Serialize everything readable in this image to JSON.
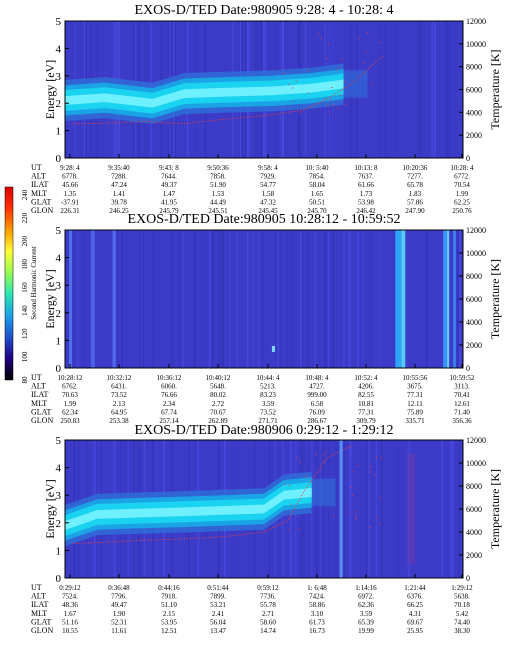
{
  "colors": {
    "background_blue": "#3b3bc8",
    "band_cyan": "#1ad3f0",
    "band_light": "#6ff0ff",
    "band_mid": "#1aa4e6",
    "band_edge": "#2f6fd8",
    "temperature_trace": "#e83d3d"
  },
  "colorbar": {
    "label": "Second Harmonic Current",
    "ticks": [
      "240",
      "220",
      "200",
      "180",
      "160",
      "140",
      "120",
      "100",
      "80"
    ],
    "stops": [
      "#d80000",
      "#ff3300",
      "#ff9a00",
      "#ffff33",
      "#96ff50",
      "#29e6b4",
      "#1aa0e6",
      "#2050cc",
      "#200080",
      "#000000"
    ]
  },
  "chart_data": [
    {
      "type": "heatmap",
      "title": "EXOS-D/TED   Date:980905   9:28: 4 - 10:28: 4",
      "ylabel": "Energy [eV]",
      "y2label": "Temperature [K]",
      "ylim": [
        0,
        5
      ],
      "y2lim": [
        0,
        12000
      ],
      "yticks": [
        "0",
        "1",
        "2",
        "3",
        "4",
        "5"
      ],
      "y2ticks": [
        "0",
        "2000",
        "4000",
        "6000",
        "8000",
        "10000",
        "12000"
      ],
      "row_labels": [
        "UT",
        "ALT",
        "ILAT",
        "MLT",
        "GLAT",
        "GLON"
      ],
      "columns": [
        [
          "9:28: 4",
          "9:35:40",
          "9:43: 8",
          "9:50:36",
          "9:58: 4",
          "10: 5:40",
          "10:13: 8",
          "10:20:36",
          "10:28: 4"
        ],
        [
          "6778.",
          "7288.",
          "7644.",
          "7858.",
          "7929.",
          "7854.",
          "7637.",
          "7277.",
          "6772."
        ],
        [
          "45.66",
          "47.24",
          "49.37",
          "51.90",
          "54.77",
          "58.04",
          "61.66",
          "65.78",
          "70.54"
        ],
        [
          "1.35",
          "1.41",
          "1.47",
          "1.53",
          "1.58",
          "1.65",
          "1.73",
          "1.83",
          "1.99"
        ],
        [
          "-37.91",
          "39.78",
          "41.95",
          "44.49",
          "47.32",
          "50.51",
          "53.98",
          "57.86",
          "62.25"
        ],
        [
          "226.31",
          "246.25",
          "245.79",
          "245.51",
          "245.45",
          "245.70",
          "246.42",
          "247.90",
          "250.76"
        ]
      ],
      "band_center_ev": [
        2.1,
        2.2,
        2.0,
        2.35,
        2.4,
        2.45,
        2.55,
        2.7
      ],
      "band_x_fraction": [
        0.0,
        0.1,
        0.22,
        0.3,
        0.4,
        0.52,
        0.62,
        0.7
      ],
      "temperature_k": [
        3000,
        3050,
        3200,
        3000,
        3400,
        3700,
        4200,
        5200,
        6500,
        9000
      ],
      "temperature_x_fraction": [
        0.02,
        0.1,
        0.2,
        0.3,
        0.4,
        0.5,
        0.6,
        0.66,
        0.72,
        0.8
      ]
    },
    {
      "type": "heatmap",
      "title": "EXOS-D/TED   Date:980905  10:28:12 - 10:59:52",
      "ylabel": "Energy [eV]",
      "y2label": "Temperature [K]",
      "ylim": [
        0,
        5
      ],
      "y2lim": [
        0,
        12000
      ],
      "yticks": [
        "0",
        "1",
        "2",
        "3",
        "4",
        "5"
      ],
      "y2ticks": [
        "0",
        "2000",
        "4000",
        "6000",
        "8000",
        "10000",
        "12000"
      ],
      "row_labels": [
        "UT",
        "ALT",
        "ILAT",
        "MLT",
        "GLAT",
        "GLON"
      ],
      "columns": [
        [
          "10:28:12",
          "10:32:12",
          "10:36:12",
          "10:40:12",
          "10:44: 4",
          "10:48: 4",
          "10:52: 4",
          "10:55:56",
          "10:59:52"
        ],
        [
          "6762.",
          "6431.",
          "6060.",
          "5648.",
          "5213.",
          "4727.",
          "4206.",
          "3675.",
          "3113."
        ],
        [
          "70.63",
          "73.52",
          "76.66",
          "80.02",
          "83.23",
          "999.00",
          "82.55",
          "77.31",
          "70.41"
        ],
        [
          "1.99",
          "2.13",
          "2.34",
          "2.72",
          "3.59",
          "6.58",
          "10.81",
          "12.11",
          "12.61"
        ],
        [
          "62.34",
          "64.95",
          "67.74",
          "70.67",
          "73.52",
          "76.09",
          "77.31",
          "75.89",
          "71.40"
        ],
        [
          "250.83",
          "253.38",
          "257.14",
          "262.89",
          "271.71",
          "286.67",
          "309.79",
          "335.71",
          "356.36"
        ]
      ]
    },
    {
      "type": "heatmap",
      "title": "EXOS-D/TED   Date:980906   0:29:12 - 1:29:12",
      "ylabel": "Energy [eV]",
      "y2label": "Temperature [K]",
      "ylim": [
        0,
        5
      ],
      "y2lim": [
        0,
        12000
      ],
      "yticks": [
        "0",
        "1",
        "2",
        "3",
        "4",
        "5"
      ],
      "y2ticks": [
        "0",
        "2000",
        "4000",
        "6000",
        "8000",
        "10000",
        "12000"
      ],
      "row_labels": [
        "UT",
        "ALT",
        "ILAT",
        "MLT",
        "GLAT",
        "GLON"
      ],
      "columns": [
        [
          "0:29:12",
          "0:36:48",
          "0:44:16",
          "0:51:44",
          "0:59:12",
          "1: 6:48",
          "1:14:16",
          "1:21:44",
          "1:29:12"
        ],
        [
          "7524.",
          "7796.",
          "7918.",
          "7899.",
          "7736.",
          "7424.",
          "6972.",
          "6376.",
          "5638."
        ],
        [
          "48.36",
          "49.47",
          "51.10",
          "53.21",
          "55.78",
          "58.86",
          "62.36",
          "66.25",
          "70.18"
        ],
        [
          "1.67",
          "1.90",
          "2.15",
          "2.41",
          "2.71",
          "3.10",
          "3.59",
          "4.31",
          "5.42"
        ],
        [
          "51.16",
          "52.31",
          "53.95",
          "56.04",
          "58.60",
          "61.73",
          "65.39",
          "69.67",
          "74.40"
        ],
        [
          "10.55",
          "11.61",
          "12.51",
          "13.47",
          "14.74",
          "16.73",
          "19.99",
          "25.95",
          "38.30"
        ]
      ],
      "band_center_ev": [
        1.9,
        2.3,
        2.35,
        2.4,
        2.45,
        2.5,
        3.0,
        3.1
      ],
      "band_x_fraction": [
        0.0,
        0.08,
        0.18,
        0.3,
        0.4,
        0.5,
        0.55,
        0.62
      ],
      "temperature_k": [
        3000,
        3100,
        3300,
        3400,
        3600,
        4000,
        5000,
        7500,
        10500,
        11500
      ],
      "temperature_x_fraction": [
        0.02,
        0.1,
        0.2,
        0.3,
        0.4,
        0.5,
        0.56,
        0.6,
        0.66,
        0.72
      ]
    }
  ]
}
